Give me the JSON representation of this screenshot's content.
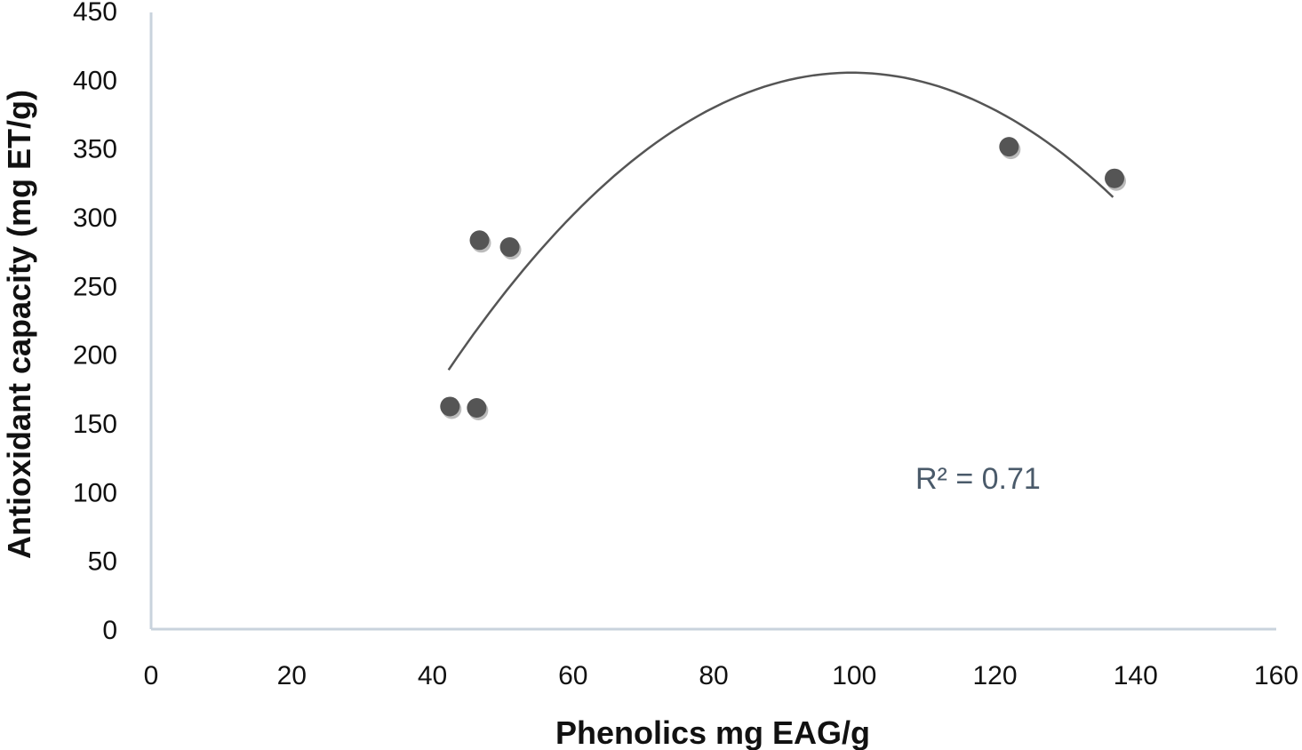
{
  "chart_data": {
    "type": "scatter",
    "title": "",
    "xlabel": "Phenolics mg EAG/g",
    "ylabel": "Antioxidant capacity  (mg ET/g)",
    "xlim": [
      0,
      160
    ],
    "ylim": [
      0,
      450
    ],
    "x_ticks": [
      "0",
      "20",
      "40",
      "60",
      "80",
      "100",
      "120",
      "140",
      "160"
    ],
    "y_ticks": [
      "0",
      "50",
      "100",
      "150",
      "200",
      "250",
      "300",
      "350",
      "400",
      "450"
    ],
    "grid": false,
    "series": [
      {
        "points": [
          {
            "x": 42.5,
            "y": 162
          },
          {
            "x": 46.3,
            "y": 161
          },
          {
            "x": 46.7,
            "y": 283
          },
          {
            "x": 51,
            "y": 278
          },
          {
            "x": 122,
            "y": 351
          },
          {
            "x": 137,
            "y": 328
          }
        ],
        "color": "#555555"
      }
    ],
    "trendline": {
      "type": "polynomial",
      "order": 2,
      "x_range": [
        42.3,
        136.8
      ],
      "color": "#555555"
    },
    "annotations": [
      {
        "text": "R² = 0.71"
      }
    ]
  }
}
